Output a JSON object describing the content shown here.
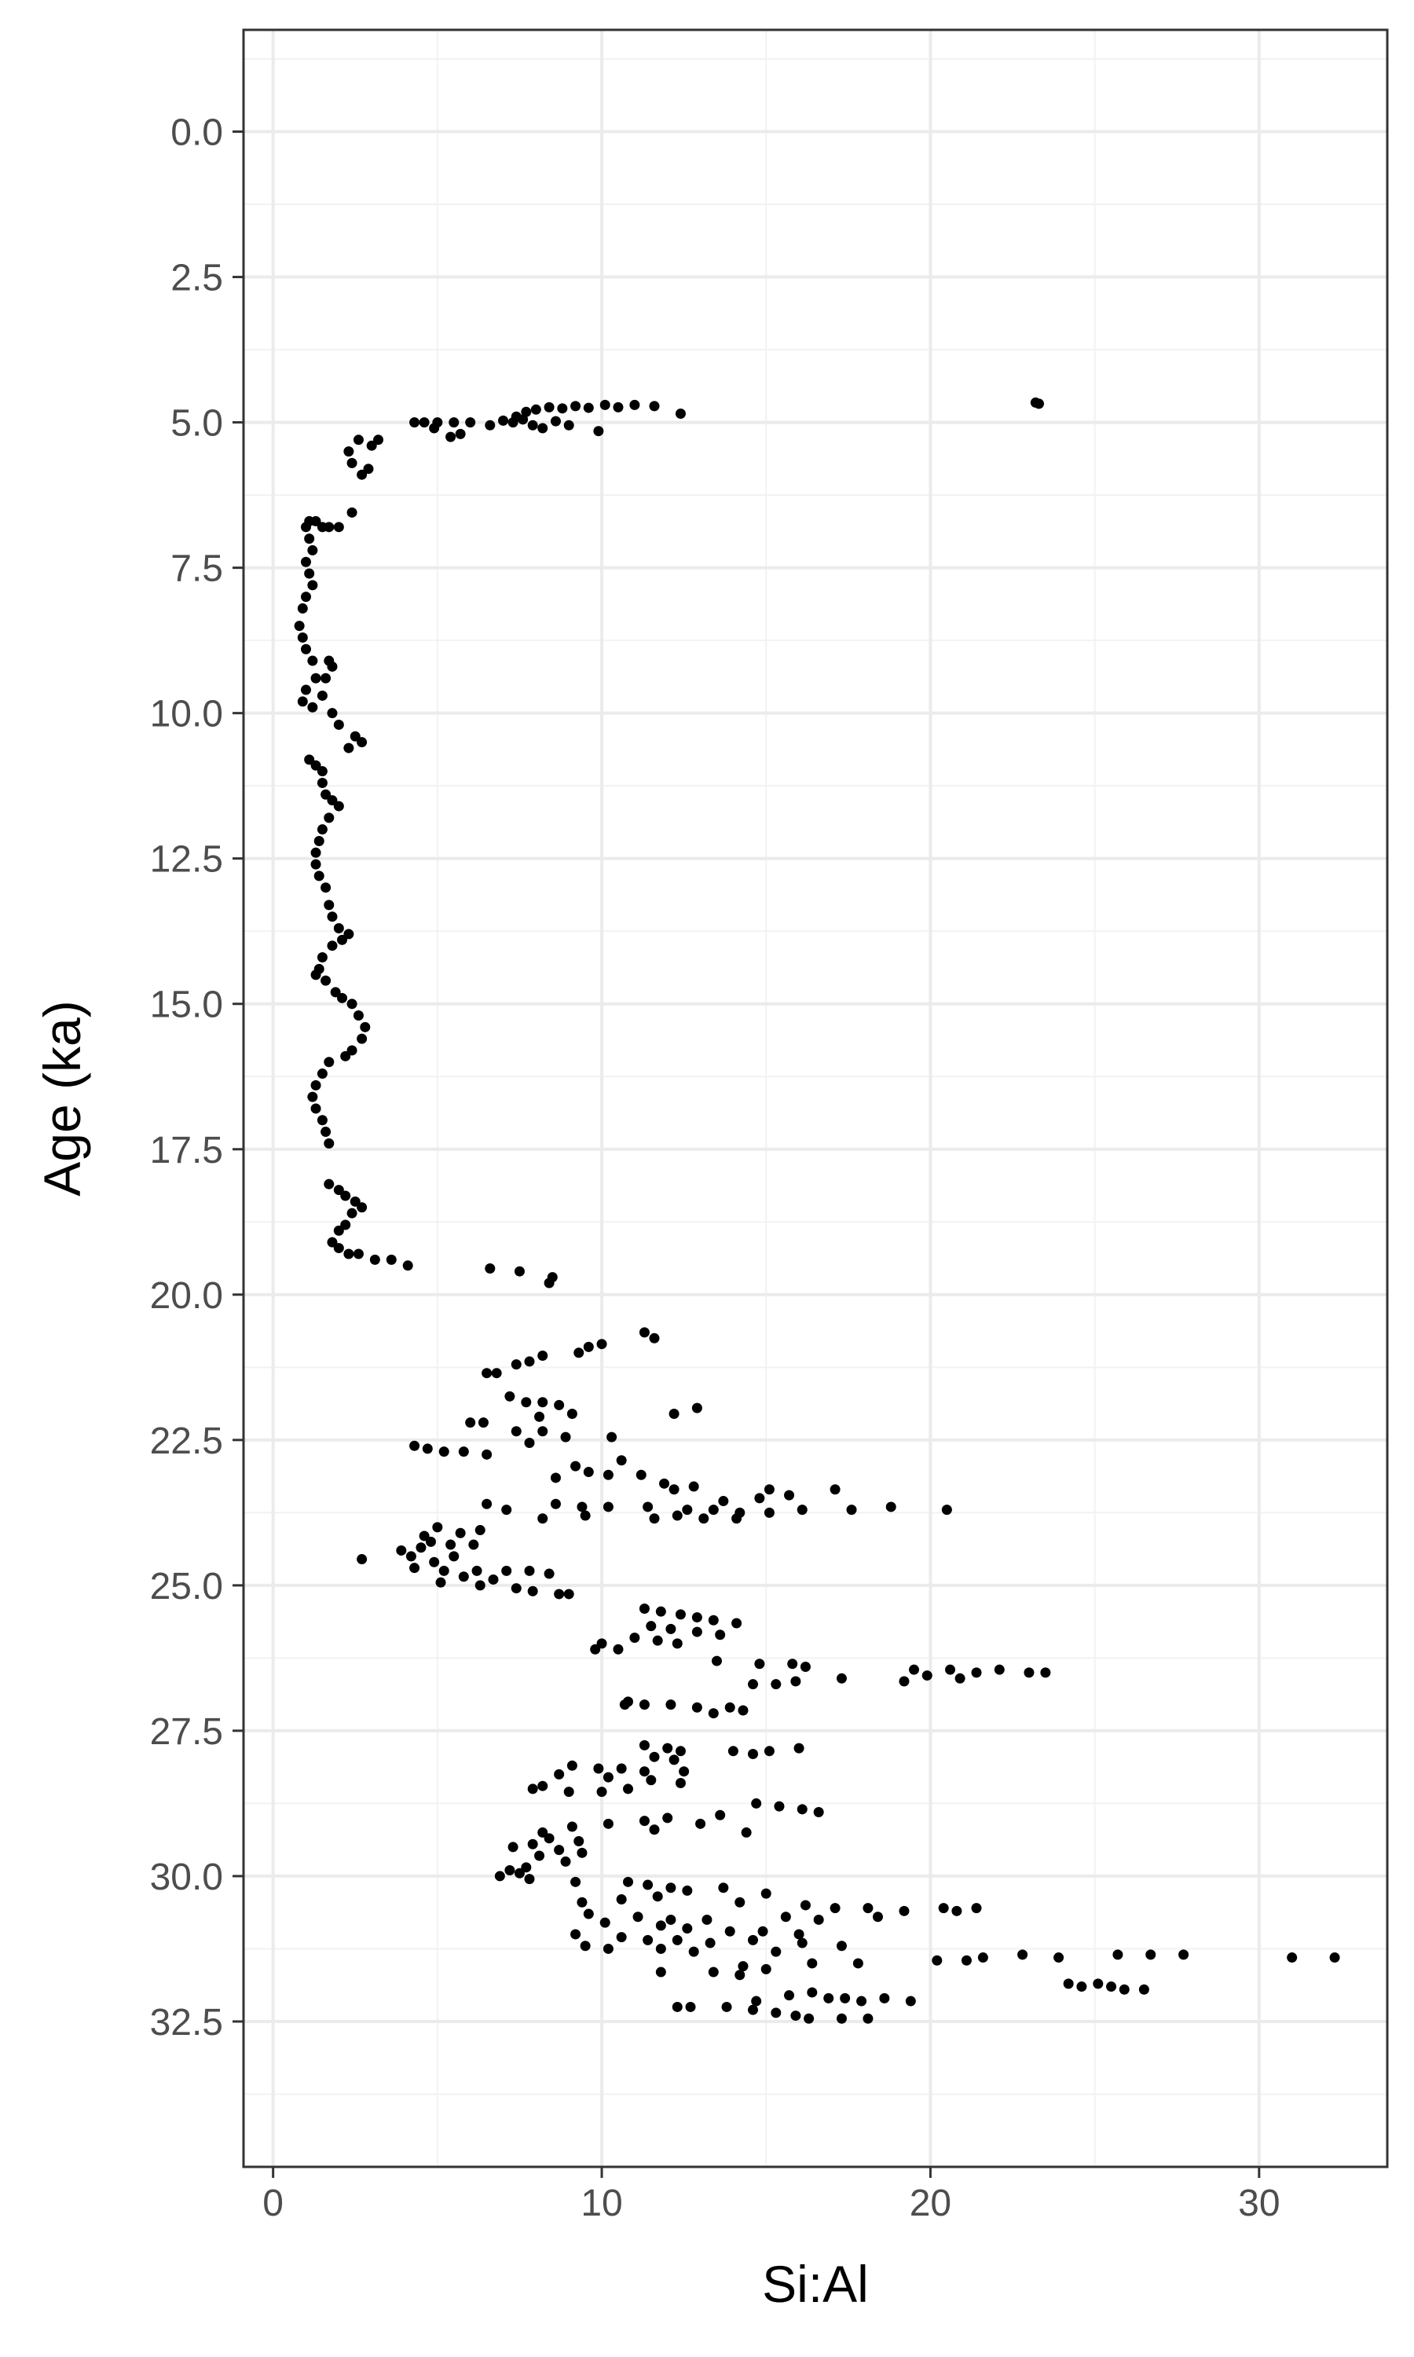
{
  "chart_data": {
    "type": "scatter",
    "title": "",
    "xlabel": "Si:Al",
    "ylabel": "Age (ka)",
    "xlim": [
      -0.9,
      33.9
    ],
    "ylim": [
      35.0,
      -1.75
    ],
    "y_reversed": true,
    "x_ticks": [
      0,
      10,
      20,
      30
    ],
    "x_tick_labels": [
      "0",
      "10",
      "20",
      "30"
    ],
    "y_ticks": [
      0,
      2.5,
      5,
      7.5,
      10,
      12.5,
      15,
      17.5,
      20,
      22.5,
      25,
      27.5,
      30,
      32.5
    ],
    "y_tick_labels": [
      "0.0",
      "2.5",
      "5.0",
      "7.5",
      "10.0",
      "12.5",
      "15.0",
      "17.5",
      "20.0",
      "22.5",
      "25.0",
      "27.5",
      "30.0",
      "32.5"
    ],
    "grid": true,
    "legend": "none",
    "point_color": "#000000",
    "points": [
      [
        23.3,
        4.68
      ],
      [
        23.2,
        4.66
      ],
      [
        12.4,
        4.85
      ],
      [
        11.6,
        4.72
      ],
      [
        11.0,
        4.7
      ],
      [
        10.5,
        4.74
      ],
      [
        10.1,
        4.7
      ],
      [
        9.6,
        4.75
      ],
      [
        9.2,
        4.72
      ],
      [
        8.8,
        4.76
      ],
      [
        8.4,
        4.74
      ],
      [
        8.0,
        4.78
      ],
      [
        7.7,
        4.82
      ],
      [
        7.4,
        4.9
      ],
      [
        9.9,
        5.15
      ],
      [
        9.0,
        5.05
      ],
      [
        8.6,
        4.98
      ],
      [
        8.2,
        5.1
      ],
      [
        7.9,
        5.05
      ],
      [
        7.6,
        4.95
      ],
      [
        7.3,
        5.0
      ],
      [
        7.0,
        4.97
      ],
      [
        6.6,
        5.05
      ],
      [
        6.0,
        5.0
      ],
      [
        5.5,
        5.0
      ],
      [
        5.0,
        5.0
      ],
      [
        4.6,
        5.0
      ],
      [
        4.3,
        5.0
      ],
      [
        5.7,
        5.2
      ],
      [
        5.4,
        5.25
      ],
      [
        4.9,
        5.1
      ],
      [
        3.2,
        5.3
      ],
      [
        3.0,
        5.4
      ],
      [
        2.6,
        5.3
      ],
      [
        2.3,
        5.5
      ],
      [
        2.4,
        5.7
      ],
      [
        2.9,
        5.8
      ],
      [
        2.7,
        5.9
      ],
      [
        2.4,
        6.55
      ],
      [
        2.0,
        6.8
      ],
      [
        1.7,
        6.8
      ],
      [
        1.5,
        6.8
      ],
      [
        1.3,
        6.7
      ],
      [
        1.1,
        6.7
      ],
      [
        1.0,
        6.8
      ],
      [
        1.1,
        7.0
      ],
      [
        1.2,
        7.2
      ],
      [
        1.0,
        7.4
      ],
      [
        1.1,
        7.6
      ],
      [
        1.2,
        7.8
      ],
      [
        1.0,
        8.0
      ],
      [
        0.9,
        8.2
      ],
      [
        0.8,
        8.5
      ],
      [
        0.9,
        8.7
      ],
      [
        1.0,
        8.9
      ],
      [
        1.2,
        9.1
      ],
      [
        1.7,
        9.1
      ],
      [
        1.8,
        9.2
      ],
      [
        1.6,
        9.4
      ],
      [
        1.3,
        9.4
      ],
      [
        1.0,
        9.6
      ],
      [
        0.9,
        9.8
      ],
      [
        1.2,
        9.9
      ],
      [
        1.5,
        9.7
      ],
      [
        1.8,
        10.0
      ],
      [
        2.0,
        10.2
      ],
      [
        2.5,
        10.4
      ],
      [
        2.7,
        10.5
      ],
      [
        2.3,
        10.6
      ],
      [
        1.1,
        10.8
      ],
      [
        1.3,
        10.9
      ],
      [
        1.5,
        11.0
      ],
      [
        1.5,
        11.2
      ],
      [
        1.6,
        11.4
      ],
      [
        1.8,
        11.5
      ],
      [
        2.0,
        11.6
      ],
      [
        1.7,
        11.8
      ],
      [
        1.5,
        12.0
      ],
      [
        1.4,
        12.2
      ],
      [
        1.3,
        12.4
      ],
      [
        1.3,
        12.6
      ],
      [
        1.4,
        12.8
      ],
      [
        1.6,
        13.0
      ],
      [
        1.7,
        13.3
      ],
      [
        1.8,
        13.5
      ],
      [
        2.0,
        13.7
      ],
      [
        2.3,
        13.8
      ],
      [
        2.1,
        13.9
      ],
      [
        1.8,
        14.0
      ],
      [
        1.5,
        14.2
      ],
      [
        1.4,
        14.4
      ],
      [
        1.3,
        14.5
      ],
      [
        1.6,
        14.6
      ],
      [
        1.9,
        14.8
      ],
      [
        2.1,
        14.9
      ],
      [
        2.4,
        15.0
      ],
      [
        2.6,
        15.2
      ],
      [
        2.8,
        15.4
      ],
      [
        2.7,
        15.6
      ],
      [
        2.4,
        15.8
      ],
      [
        2.2,
        15.9
      ],
      [
        1.7,
        16.0
      ],
      [
        1.5,
        16.2
      ],
      [
        1.3,
        16.4
      ],
      [
        1.2,
        16.6
      ],
      [
        1.3,
        16.8
      ],
      [
        1.5,
        17.0
      ],
      [
        1.6,
        17.2
      ],
      [
        1.7,
        17.4
      ],
      [
        1.7,
        18.1
      ],
      [
        2.0,
        18.2
      ],
      [
        2.2,
        18.3
      ],
      [
        2.5,
        18.4
      ],
      [
        2.7,
        18.5
      ],
      [
        2.4,
        18.6
      ],
      [
        2.2,
        18.8
      ],
      [
        2.0,
        18.9
      ],
      [
        1.8,
        19.1
      ],
      [
        2.0,
        19.2
      ],
      [
        2.3,
        19.3
      ],
      [
        2.6,
        19.3
      ],
      [
        3.1,
        19.4
      ],
      [
        3.6,
        19.4
      ],
      [
        4.1,
        19.5
      ],
      [
        6.6,
        19.55
      ],
      [
        7.5,
        19.6
      ],
      [
        8.5,
        19.7
      ],
      [
        8.4,
        19.8
      ],
      [
        11.3,
        20.65
      ],
      [
        11.6,
        20.75
      ],
      [
        10.0,
        20.85
      ],
      [
        9.6,
        20.9
      ],
      [
        9.3,
        21.0
      ],
      [
        8.2,
        21.05
      ],
      [
        7.8,
        21.15
      ],
      [
        7.4,
        21.2
      ],
      [
        6.8,
        21.35
      ],
      [
        6.5,
        21.35
      ],
      [
        7.2,
        21.75
      ],
      [
        7.7,
        21.85
      ],
      [
        8.2,
        21.85
      ],
      [
        8.7,
        21.9
      ],
      [
        12.9,
        21.95
      ],
      [
        12.2,
        22.05
      ],
      [
        9.1,
        22.05
      ],
      [
        8.1,
        22.1
      ],
      [
        6.4,
        22.2
      ],
      [
        6.0,
        22.2
      ],
      [
        7.4,
        22.35
      ],
      [
        8.2,
        22.35
      ],
      [
        8.9,
        22.45
      ],
      [
        10.3,
        22.45
      ],
      [
        7.8,
        22.55
      ],
      [
        4.3,
        22.6
      ],
      [
        4.7,
        22.65
      ],
      [
        5.2,
        22.7
      ],
      [
        5.8,
        22.7
      ],
      [
        6.5,
        22.75
      ],
      [
        10.6,
        22.85
      ],
      [
        9.2,
        22.95
      ],
      [
        9.6,
        23.05
      ],
      [
        10.2,
        23.1
      ],
      [
        11.2,
        23.1
      ],
      [
        8.6,
        23.15
      ],
      [
        11.9,
        23.25
      ],
      [
        12.8,
        23.3
      ],
      [
        12.2,
        23.35
      ],
      [
        15.1,
        23.35
      ],
      [
        17.1,
        23.35
      ],
      [
        15.7,
        23.45
      ],
      [
        14.8,
        23.5
      ],
      [
        13.7,
        23.55
      ],
      [
        8.6,
        23.6
      ],
      [
        9.4,
        23.65
      ],
      [
        10.2,
        23.65
      ],
      [
        11.4,
        23.65
      ],
      [
        12.6,
        23.7
      ],
      [
        13.4,
        23.7
      ],
      [
        14.2,
        23.75
      ],
      [
        15.1,
        23.75
      ],
      [
        16.1,
        23.7
      ],
      [
        17.6,
        23.7
      ],
      [
        18.8,
        23.65
      ],
      [
        20.5,
        23.7
      ],
      [
        7.1,
        23.7
      ],
      [
        6.5,
        23.6
      ],
      [
        8.2,
        23.85
      ],
      [
        9.5,
        23.8
      ],
      [
        11.6,
        23.85
      ],
      [
        12.3,
        23.8
      ],
      [
        13.1,
        23.85
      ],
      [
        14.1,
        23.85
      ],
      [
        5.0,
        24.0
      ],
      [
        6.3,
        24.05
      ],
      [
        5.7,
        24.1
      ],
      [
        4.6,
        24.15
      ],
      [
        4.8,
        24.25
      ],
      [
        5.4,
        24.3
      ],
      [
        6.1,
        24.3
      ],
      [
        4.5,
        24.35
      ],
      [
        3.9,
        24.4
      ],
      [
        4.2,
        24.5
      ],
      [
        5.5,
        24.5
      ],
      [
        2.7,
        24.55
      ],
      [
        4.9,
        24.6
      ],
      [
        4.3,
        24.7
      ],
      [
        5.2,
        24.75
      ],
      [
        6.2,
        24.75
      ],
      [
        7.1,
        24.75
      ],
      [
        7.8,
        24.75
      ],
      [
        8.4,
        24.8
      ],
      [
        5.8,
        24.85
      ],
      [
        6.7,
        24.9
      ],
      [
        5.1,
        24.95
      ],
      [
        6.3,
        25.0
      ],
      [
        7.4,
        25.05
      ],
      [
        7.9,
        25.1
      ],
      [
        8.7,
        25.15
      ],
      [
        9.0,
        25.15
      ],
      [
        11.3,
        25.4
      ],
      [
        11.8,
        25.45
      ],
      [
        12.4,
        25.5
      ],
      [
        12.9,
        25.55
      ],
      [
        13.4,
        25.6
      ],
      [
        14.1,
        25.65
      ],
      [
        11.5,
        25.7
      ],
      [
        12.1,
        25.75
      ],
      [
        12.9,
        25.8
      ],
      [
        13.6,
        25.85
      ],
      [
        11.0,
        25.9
      ],
      [
        11.7,
        25.95
      ],
      [
        12.3,
        26.0
      ],
      [
        10.0,
        26.0
      ],
      [
        9.8,
        26.1
      ],
      [
        10.5,
        26.1
      ],
      [
        13.5,
        26.3
      ],
      [
        14.8,
        26.35
      ],
      [
        15.8,
        26.35
      ],
      [
        16.2,
        26.4
      ],
      [
        19.5,
        26.45
      ],
      [
        20.6,
        26.45
      ],
      [
        21.4,
        26.5
      ],
      [
        22.1,
        26.45
      ],
      [
        23.0,
        26.5
      ],
      [
        23.5,
        26.5
      ],
      [
        19.9,
        26.55
      ],
      [
        17.3,
        26.6
      ],
      [
        15.9,
        26.65
      ],
      [
        20.9,
        26.6
      ],
      [
        19.2,
        26.65
      ],
      [
        15.3,
        26.7
      ],
      [
        14.6,
        26.7
      ],
      [
        10.8,
        27.0
      ],
      [
        11.3,
        27.05
      ],
      [
        12.1,
        27.05
      ],
      [
        12.9,
        27.1
      ],
      [
        13.9,
        27.1
      ],
      [
        14.3,
        27.15
      ],
      [
        13.4,
        27.2
      ],
      [
        10.7,
        27.05
      ],
      [
        11.3,
        27.75
      ],
      [
        12.0,
        27.8
      ],
      [
        12.4,
        27.85
      ],
      [
        14.0,
        27.85
      ],
      [
        16.0,
        27.8
      ],
      [
        15.1,
        27.85
      ],
      [
        14.6,
        27.9
      ],
      [
        11.6,
        27.95
      ],
      [
        12.2,
        28.0
      ],
      [
        9.1,
        28.1
      ],
      [
        9.9,
        28.15
      ],
      [
        10.6,
        28.15
      ],
      [
        11.3,
        28.2
      ],
      [
        12.5,
        28.2
      ],
      [
        8.7,
        28.25
      ],
      [
        10.2,
        28.3
      ],
      [
        11.5,
        28.35
      ],
      [
        12.4,
        28.4
      ],
      [
        8.2,
        28.45
      ],
      [
        7.9,
        28.5
      ],
      [
        9.0,
        28.55
      ],
      [
        10.0,
        28.55
      ],
      [
        10.8,
        28.5
      ],
      [
        14.7,
        28.75
      ],
      [
        15.4,
        28.8
      ],
      [
        16.1,
        28.85
      ],
      [
        16.6,
        28.9
      ],
      [
        13.6,
        28.95
      ],
      [
        12.0,
        29.0
      ],
      [
        11.3,
        29.05
      ],
      [
        10.2,
        29.1
      ],
      [
        9.1,
        29.15
      ],
      [
        11.6,
        29.2
      ],
      [
        13.0,
        29.1
      ],
      [
        8.2,
        29.25
      ],
      [
        14.4,
        29.25
      ],
      [
        8.4,
        29.35
      ],
      [
        9.3,
        29.4
      ],
      [
        7.9,
        29.45
      ],
      [
        7.3,
        29.5
      ],
      [
        8.7,
        29.55
      ],
      [
        9.4,
        29.6
      ],
      [
        8.1,
        29.65
      ],
      [
        8.9,
        29.75
      ],
      [
        7.7,
        29.85
      ],
      [
        7.2,
        29.9
      ],
      [
        7.5,
        29.95
      ],
      [
        6.9,
        30.0
      ],
      [
        7.8,
        30.05
      ],
      [
        9.2,
        30.1
      ],
      [
        10.8,
        30.1
      ],
      [
        11.4,
        30.15
      ],
      [
        12.1,
        30.2
      ],
      [
        12.6,
        30.25
      ],
      [
        13.7,
        30.2
      ],
      [
        15.0,
        30.3
      ],
      [
        11.7,
        30.35
      ],
      [
        10.6,
        30.4
      ],
      [
        9.4,
        30.45
      ],
      [
        14.2,
        30.45
      ],
      [
        16.2,
        30.5
      ],
      [
        17.1,
        30.55
      ],
      [
        18.1,
        30.55
      ],
      [
        19.2,
        30.6
      ],
      [
        20.4,
        30.55
      ],
      [
        21.4,
        30.55
      ],
      [
        20.8,
        30.6
      ],
      [
        9.6,
        30.65
      ],
      [
        11.1,
        30.7
      ],
      [
        12.1,
        30.75
      ],
      [
        13.2,
        30.75
      ],
      [
        15.6,
        30.7
      ],
      [
        16.6,
        30.75
      ],
      [
        18.4,
        30.7
      ],
      [
        10.1,
        30.8
      ],
      [
        11.8,
        30.85
      ],
      [
        12.6,
        30.9
      ],
      [
        13.9,
        30.95
      ],
      [
        14.9,
        30.95
      ],
      [
        16.0,
        31.0
      ],
      [
        9.2,
        31.0
      ],
      [
        10.6,
        31.05
      ],
      [
        11.4,
        31.1
      ],
      [
        12.3,
        31.1
      ],
      [
        13.3,
        31.15
      ],
      [
        14.6,
        31.1
      ],
      [
        16.1,
        31.15
      ],
      [
        17.3,
        31.2
      ],
      [
        9.5,
        31.2
      ],
      [
        10.2,
        31.25
      ],
      [
        11.8,
        31.25
      ],
      [
        12.8,
        31.3
      ],
      [
        15.3,
        31.3
      ],
      [
        22.8,
        31.35
      ],
      [
        25.7,
        31.35
      ],
      [
        26.7,
        31.35
      ],
      [
        27.7,
        31.35
      ],
      [
        31.0,
        31.4
      ],
      [
        32.3,
        31.4
      ],
      [
        23.9,
        31.4
      ],
      [
        21.6,
        31.4
      ],
      [
        21.1,
        31.45
      ],
      [
        20.2,
        31.45
      ],
      [
        16.4,
        31.5
      ],
      [
        17.8,
        31.5
      ],
      [
        14.3,
        31.55
      ],
      [
        15.0,
        31.6
      ],
      [
        13.4,
        31.65
      ],
      [
        11.8,
        31.65
      ],
      [
        14.2,
        31.7
      ],
      [
        24.2,
        31.85
      ],
      [
        25.1,
        31.85
      ],
      [
        25.5,
        31.9
      ],
      [
        24.6,
        31.9
      ],
      [
        26.5,
        31.95
      ],
      [
        25.9,
        31.95
      ],
      [
        16.4,
        32.0
      ],
      [
        15.7,
        32.05
      ],
      [
        16.9,
        32.1
      ],
      [
        17.4,
        32.1
      ],
      [
        18.6,
        32.1
      ],
      [
        19.4,
        32.15
      ],
      [
        17.9,
        32.15
      ],
      [
        14.7,
        32.15
      ],
      [
        12.3,
        32.25
      ],
      [
        12.7,
        32.25
      ],
      [
        13.8,
        32.25
      ],
      [
        14.6,
        32.3
      ],
      [
        15.3,
        32.35
      ],
      [
        15.9,
        32.4
      ],
      [
        16.3,
        32.45
      ],
      [
        17.3,
        32.45
      ],
      [
        18.1,
        32.45
      ]
    ]
  }
}
